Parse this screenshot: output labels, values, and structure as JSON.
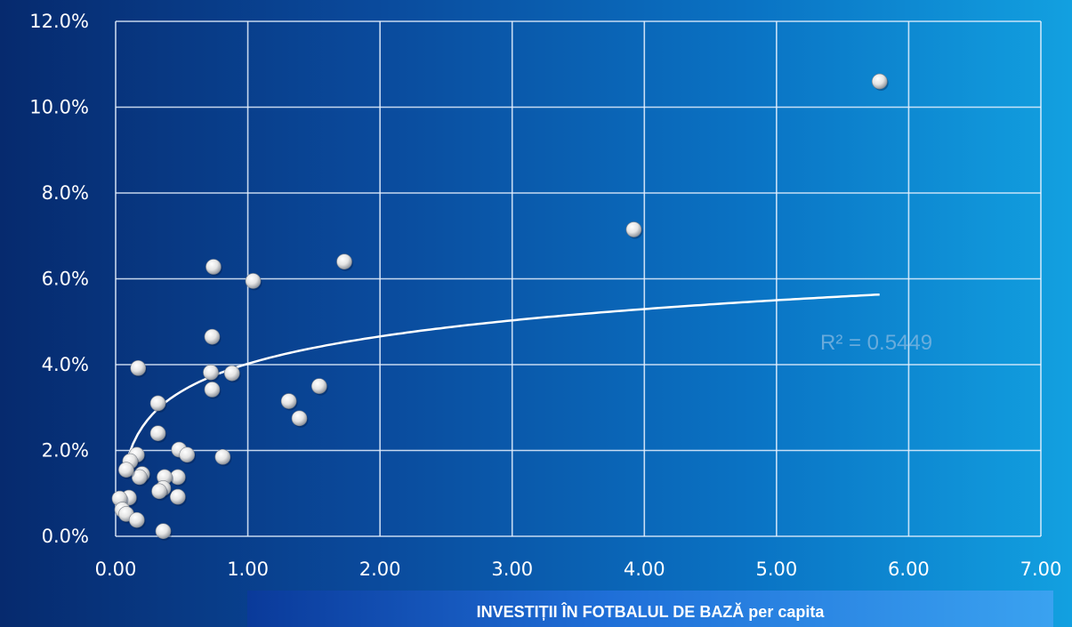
{
  "chart_data": {
    "type": "scatter",
    "title": "",
    "xlabel": "INVESTIȚII ÎN FOTBALUL DE BAZĂ per capita",
    "ylabel": "",
    "xlim": [
      0,
      7
    ],
    "ylim": [
      0,
      12
    ],
    "x_ticks": [
      "0.00",
      "1.00",
      "2.00",
      "3.00",
      "4.00",
      "5.00",
      "6.00",
      "7.00"
    ],
    "y_ticks": [
      "0.0%",
      "2.0%",
      "4.0%",
      "6.0%",
      "8.0%",
      "10.0%",
      "12.0%"
    ],
    "grid": true,
    "trendline": {
      "type": "logarithmic",
      "x_range": [
        0.06,
        5.78
      ],
      "a": 4.02,
      "b": 0.92,
      "label": "R² = 0.5449"
    },
    "series": [
      {
        "name": "",
        "points": [
          [
            5.78,
            10.6
          ],
          [
            3.92,
            7.15
          ],
          [
            1.73,
            6.4
          ],
          [
            1.04,
            5.95
          ],
          [
            0.74,
            6.28
          ],
          [
            0.73,
            4.65
          ],
          [
            0.72,
            3.82
          ],
          [
            0.73,
            3.42
          ],
          [
            0.88,
            3.8
          ],
          [
            1.31,
            3.15
          ],
          [
            1.39,
            2.75
          ],
          [
            1.54,
            3.5
          ],
          [
            0.17,
            3.92
          ],
          [
            0.32,
            3.1
          ],
          [
            0.32,
            2.4
          ],
          [
            0.48,
            2.02
          ],
          [
            0.54,
            1.9
          ],
          [
            0.81,
            1.85
          ],
          [
            0.47,
            1.38
          ],
          [
            0.47,
            0.92
          ],
          [
            0.37,
            1.38
          ],
          [
            0.36,
            1.12
          ],
          [
            0.33,
            1.05
          ],
          [
            0.36,
            0.12
          ],
          [
            0.2,
            1.45
          ],
          [
            0.18,
            1.38
          ],
          [
            0.16,
            1.9
          ],
          [
            0.11,
            1.75
          ],
          [
            0.08,
            1.55
          ],
          [
            0.1,
            0.9
          ],
          [
            0.03,
            0.88
          ],
          [
            0.05,
            0.62
          ],
          [
            0.08,
            0.52
          ],
          [
            0.16,
            0.38
          ]
        ]
      }
    ]
  }
}
